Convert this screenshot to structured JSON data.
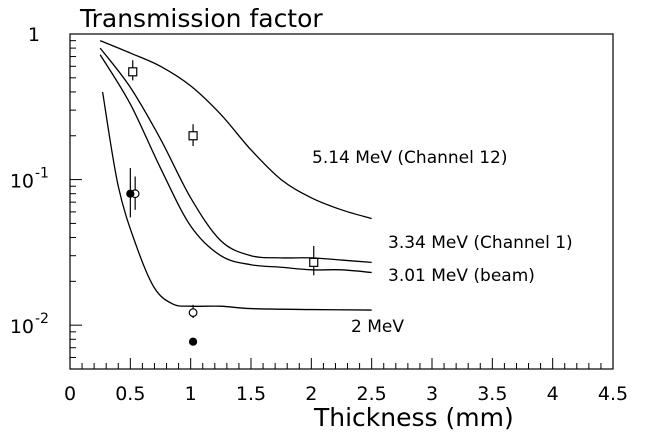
{
  "chart_data": {
    "type": "line",
    "title": "Transmission factor",
    "xlabel": "Thickness (mm)",
    "ylabel": "",
    "xlim": [
      0,
      4.5
    ],
    "ylim": [
      0.005,
      1
    ],
    "yscale": "log",
    "grid": false,
    "x_ticks": [
      "0",
      "0.5",
      "1",
      "1.5",
      "2",
      "2.5",
      "3",
      "3.5",
      "4",
      "4.5"
    ],
    "y_ticks": [
      {
        "base": "1",
        "exp": ""
      },
      {
        "base": "10",
        "exp": "-1"
      },
      {
        "base": "10",
        "exp": "-2"
      }
    ],
    "series": [
      {
        "name": "5.14 MeV (Channel 12)",
        "x": [
          0.25,
          0.5,
          0.75,
          1.0,
          1.25,
          1.5,
          1.75,
          2.0,
          2.25,
          2.5
        ],
        "y": [
          0.9,
          0.74,
          0.6,
          0.44,
          0.28,
          0.16,
          0.1,
          0.075,
          0.062,
          0.054
        ]
      },
      {
        "name": "3.34 MeV (Channel 1)",
        "x": [
          0.25,
          0.5,
          0.75,
          1.0,
          1.25,
          1.5,
          1.75,
          2.0,
          2.25,
          2.5
        ],
        "y": [
          0.8,
          0.43,
          0.19,
          0.075,
          0.038,
          0.03,
          0.029,
          0.029,
          0.028,
          0.027
        ]
      },
      {
        "name": "3.01 MeV (beam)",
        "x": [
          0.25,
          0.5,
          0.75,
          1.0,
          1.25,
          1.5,
          1.75,
          2.0,
          2.25,
          2.5
        ],
        "y": [
          0.72,
          0.33,
          0.12,
          0.048,
          0.03,
          0.026,
          0.025,
          0.024,
          0.024,
          0.023
        ]
      },
      {
        "name": "2 MeV",
        "x": [
          0.27,
          0.4,
          0.55,
          0.7,
          0.85,
          1.0,
          1.25,
          1.5,
          2.0,
          2.5
        ],
        "y": [
          0.4,
          0.09,
          0.035,
          0.018,
          0.014,
          0.0135,
          0.0135,
          0.013,
          0.0128,
          0.0127
        ]
      }
    ],
    "markers": [
      {
        "shape": "square",
        "x": 0.52,
        "y": 0.55,
        "yerr_low": 0.48,
        "yerr_high": 0.66
      },
      {
        "shape": "square",
        "x": 1.02,
        "y": 0.2,
        "yerr_low": 0.17,
        "yerr_high": 0.24
      },
      {
        "shape": "square",
        "x": 2.02,
        "y": 0.027,
        "yerr_low": 0.022,
        "yerr_high": 0.035
      },
      {
        "shape": "open-circle",
        "x": 0.54,
        "y": 0.08,
        "yerr_low": 0.062,
        "yerr_high": 0.105
      },
      {
        "shape": "open-circle",
        "x": 1.02,
        "y": 0.0122,
        "yerr_low": 0.0112,
        "yerr_high": 0.0138
      },
      {
        "shape": "filled-circle",
        "x": 0.5,
        "y": 0.08,
        "yerr_low": 0.055,
        "yerr_high": 0.12
      },
      {
        "shape": "filled-circle",
        "x": 1.02,
        "y": 0.0077
      }
    ]
  }
}
